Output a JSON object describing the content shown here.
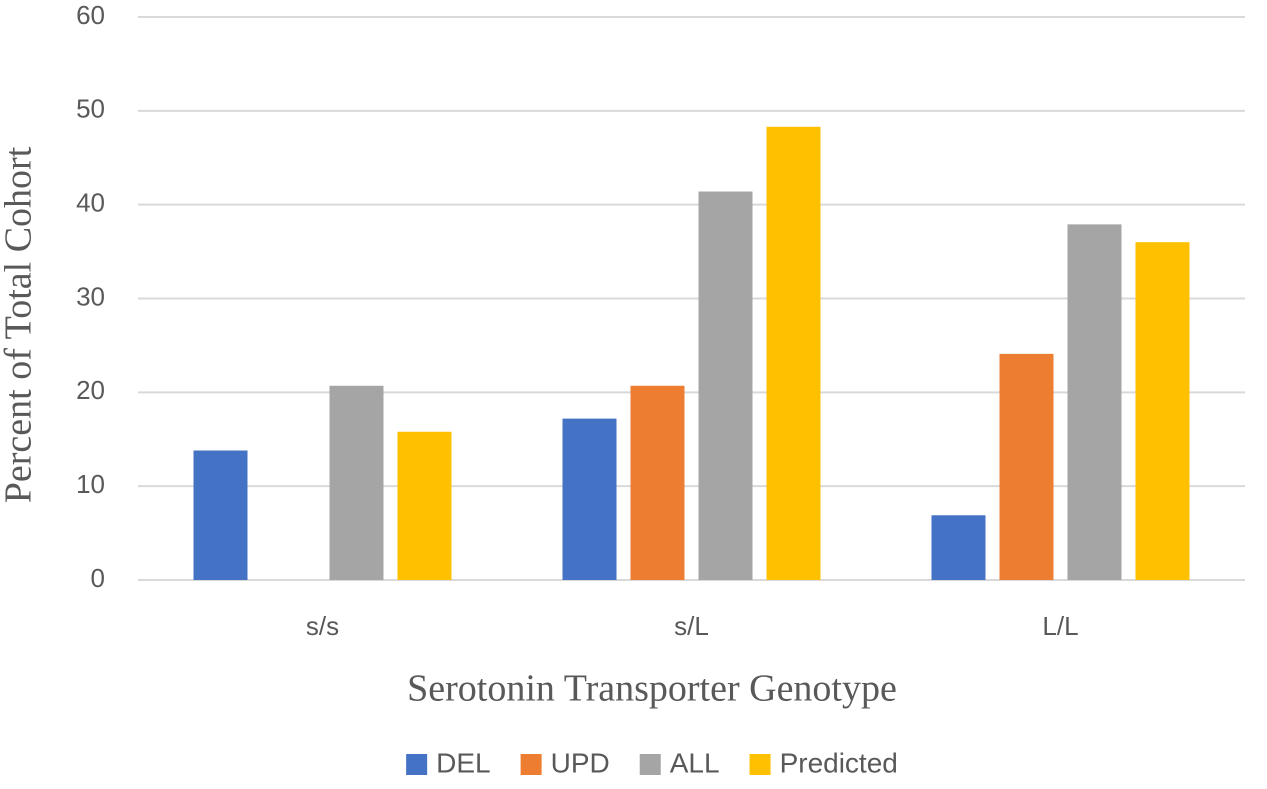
{
  "chart_data": {
    "type": "bar",
    "x_label": "Serotonin Transporter Genotype",
    "y_label": "Percent of Total Cohort",
    "categories": [
      "s/s",
      "s/L",
      "L/L"
    ],
    "series": [
      {
        "name": "DEL",
        "color": "#4472c4",
        "values": [
          13.8,
          17.2,
          6.9
        ]
      },
      {
        "name": "UPD",
        "color": "#ed7d31",
        "values": [
          0,
          20.7,
          24.1
        ]
      },
      {
        "name": "ALL",
        "color": "#a5a5a5",
        "values": [
          20.7,
          41.4,
          37.9
        ]
      },
      {
        "name": "Predicted",
        "color": "#ffc000",
        "values": [
          15.8,
          48.3,
          36.0
        ]
      }
    ],
    "ylim": [
      0,
      60
    ],
    "yticks": [
      0,
      10,
      20,
      30,
      40,
      50,
      60
    ],
    "grid": true,
    "legend": "bottom"
  }
}
